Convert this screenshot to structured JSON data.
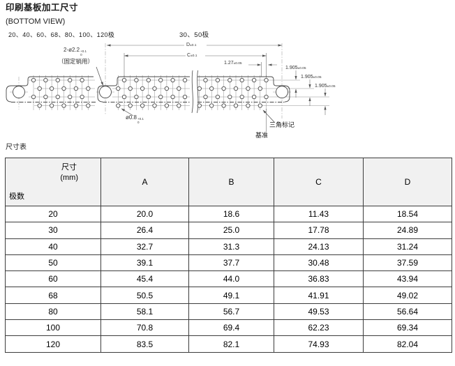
{
  "page": {
    "title": "印刷基板加工尺寸",
    "subtitle": "(BOTTOM VIEW)"
  },
  "diagram": {
    "pole_label_left": "20、40、60、68、80、100、120极",
    "pole_label_right": "30、50极",
    "dims": {
      "d": {
        "main": "D",
        "tol": "±0.1"
      },
      "c": {
        "main": "C",
        "tol": "±0.1"
      },
      "pitch": {
        "main": "1.27",
        "tol": "±0.05"
      },
      "row1": {
        "main": "1.905",
        "tol": "±0.05"
      },
      "row2": {
        "main": "1.905",
        "tol": "±0.05"
      },
      "row3": {
        "main": "1.905",
        "tol": "±0.05"
      },
      "fixing_pin": {
        "main": "2-ø2.2",
        "sup": "+0.1",
        "sub": "0",
        "note": "（固定销用）"
      },
      "hole": {
        "main": "ø0.8",
        "sup": "+0.1",
        "sub": "0"
      }
    },
    "annotations": {
      "triangle_mark": "三角标记",
      "datum": "基准"
    }
  },
  "table": {
    "caption": "尺寸表",
    "header": {
      "dim_label": "尺寸",
      "unit_label": "(mm)",
      "poles_label": "极数",
      "columns": [
        "A",
        "B",
        "C",
        "D"
      ]
    },
    "rows": [
      [
        "20",
        "20.0",
        "18.6",
        "11.43",
        "18.54"
      ],
      [
        "30",
        "26.4",
        "25.0",
        "17.78",
        "24.89"
      ],
      [
        "40",
        "32.7",
        "31.3",
        "24.13",
        "31.24"
      ],
      [
        "50",
        "39.1",
        "37.7",
        "30.48",
        "37.59"
      ],
      [
        "60",
        "45.4",
        "44.0",
        "36.83",
        "43.94"
      ],
      [
        "68",
        "50.5",
        "49.1",
        "41.91",
        "49.02"
      ],
      [
        "80",
        "58.1",
        "56.7",
        "49.53",
        "56.64"
      ],
      [
        "100",
        "70.8",
        "69.4",
        "62.23",
        "69.34"
      ],
      [
        "120",
        "83.5",
        "82.1",
        "74.93",
        "82.04"
      ]
    ]
  },
  "colors": {
    "line": "#4a4a4a",
    "table_border": "#3c3c3c",
    "header_bg": "#f1f1f1"
  }
}
